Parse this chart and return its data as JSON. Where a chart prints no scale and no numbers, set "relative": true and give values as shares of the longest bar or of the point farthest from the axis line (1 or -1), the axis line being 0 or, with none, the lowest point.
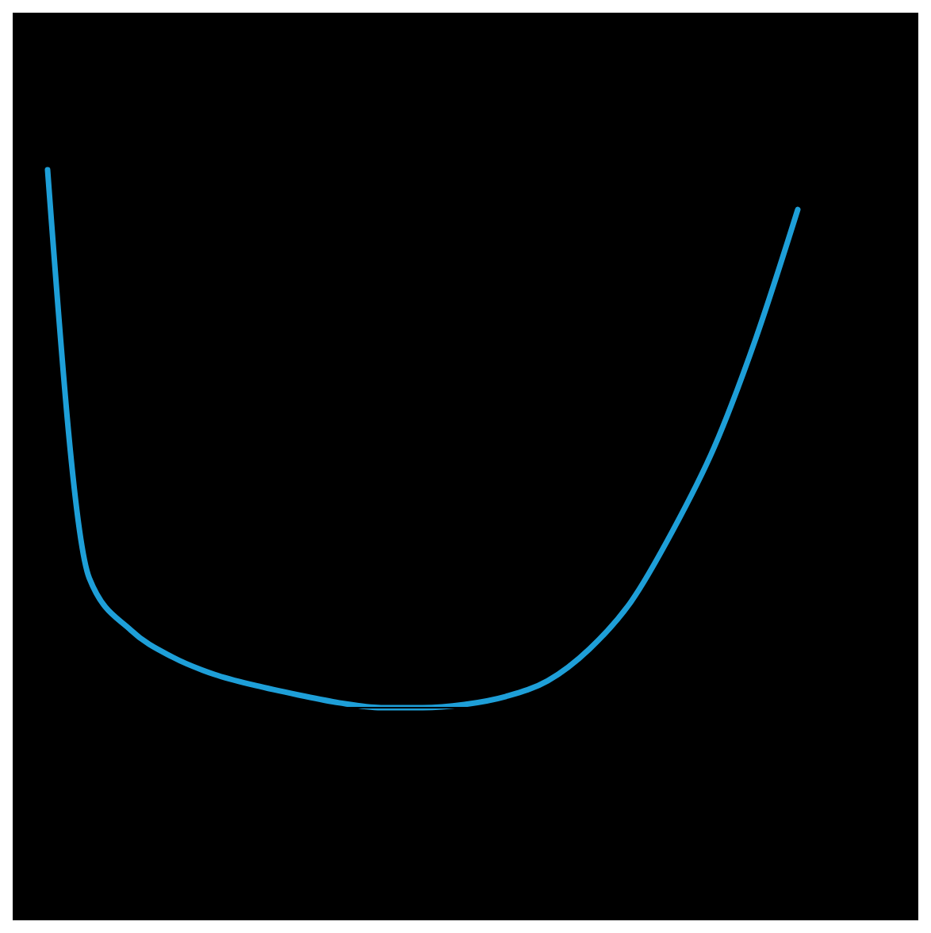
{
  "chart_data": {
    "type": "line",
    "relative": true,
    "categories": [
      null,
      null,
      null,
      null,
      null,
      null,
      null,
      null,
      null,
      null,
      null,
      null,
      null,
      null,
      null,
      null,
      null,
      null,
      null
    ],
    "series": [
      {
        "color": "#1e9fd8",
        "values": [
          1.0,
          0.241,
          0.144,
          0.094,
          0.062,
          0.041,
          0.024,
          0.009,
          0,
          0,
          0.006,
          0.021,
          0.05,
          0.109,
          0.197,
          0.329,
          0.485,
          0.688,
          0.926
        ]
      }
    ],
    "grid": false,
    "legend": false,
    "marker": "none",
    "line_style": "solid"
  }
}
